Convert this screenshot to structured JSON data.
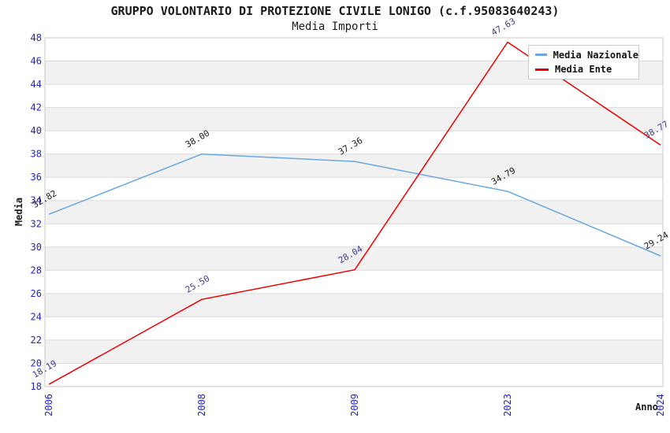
{
  "chart_data": {
    "type": "line",
    "title": "GRUPPO VOLONTARIO DI PROTEZIONE CIVILE LONIGO (c.f.95083640243)",
    "subtitle": "Media Importi",
    "xlabel": "Anno",
    "ylabel": "Media",
    "categories": [
      "2006",
      "2008",
      "2009",
      "2023",
      "2024"
    ],
    "series": [
      {
        "name": "Media Nazionale",
        "color": "#6AA7E0",
        "label_color": "#1a1a1a",
        "values": [
          32.82,
          38.0,
          37.36,
          34.79,
          29.24
        ]
      },
      {
        "name": "Media Ente",
        "color": "#EE0000",
        "label_color": "#3C3C96",
        "values": [
          18.19,
          25.5,
          28.04,
          47.63,
          38.77
        ]
      }
    ],
    "ylim": [
      18,
      48
    ],
    "ytick_step": 2,
    "yticks": [
      18,
      20,
      22,
      24,
      26,
      28,
      30,
      32,
      34,
      36,
      38,
      40,
      42,
      44,
      46,
      48
    ],
    "legend_position": "top-right",
    "grid": {
      "bands": true,
      "band_color": "#F1F1F1",
      "gridline_color": "#DCDCDC",
      "border_color": "#C8C8C8"
    },
    "tick_color": "#2222CC",
    "value_decimals": 2
  }
}
